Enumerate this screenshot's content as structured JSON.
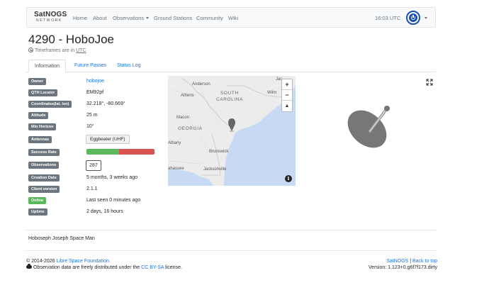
{
  "navbar": {
    "brand_top": "SatNOGS",
    "brand_bottom": "NETWORK",
    "links": [
      "Home",
      "About",
      "Observations",
      "Ground Stations",
      "Community",
      "Wiki"
    ],
    "time": "16:03 UTC"
  },
  "station": {
    "title": "4290 - HoboJoe",
    "timeframe_prefix": "Timeframes are in",
    "timeframe_unit": "UTC"
  },
  "tabs": [
    "Information",
    "Future Passes",
    "Status Log"
  ],
  "info": {
    "owner_label": "Owner",
    "owner": "hobojoe",
    "qth_label": "QTH Locator",
    "qth": "EM92pf",
    "coords_label": "Coordinates(lat, lon)",
    "coords": "32.218°, -80.669°",
    "altitude_label": "Altitude",
    "altitude": "25 m",
    "horizon_label": "Min Horizon",
    "horizon": "10°",
    "antennas_label": "Antennas",
    "antenna": "Eggbeater (UHF)",
    "success_label": "Success Rate",
    "success_ok_fraction": 0.48,
    "success_bad_fraction": 0.52,
    "observations_label": "Observations",
    "observations": "287",
    "creation_label": "Creation Date",
    "creation": "5 months, 3 weeks ago",
    "client_label": "Client version",
    "client": "2.1.1",
    "online_label": "Online",
    "online": "Last seen 0 minutes ago",
    "uptime_label": "Uptime",
    "uptime": "2 days, 16 hours"
  },
  "map": {
    "labels": {
      "anderson": "Anderson",
      "athens": "Athens",
      "sc1": "SOUTH",
      "sc2": "CAROLINA",
      "wilm": "Wilm",
      "jack": "Jac",
      "macon": "Macon",
      "georgia": "GEORGIA",
      "albany": "Albany",
      "brunswick": "Brunswick",
      "tallahassee": "ahassee",
      "jacksonville": "Jacksonville"
    },
    "zoom_in": "+",
    "zoom_out": "−",
    "reset": "▲",
    "info": "i",
    "colors": {
      "land": "#ececec",
      "water": "#c8daf3",
      "marker": "#666666"
    }
  },
  "description": "Hoboseph Joseph Space Man",
  "footer": {
    "copyright": "© 2014-2026",
    "foundation": "Libre Space Foundation.",
    "license_prefix": "Observation data are freely distributed under the",
    "license_link": "CC BY-SA",
    "license_suffix": "license.",
    "satnogs_link": "SatNOGS",
    "separator": "|",
    "back_to_top": "Back to top",
    "version": "Version: 1.123+0.g6f7f173.dirty"
  },
  "icons": [
    "clock-icon",
    "power-icon",
    "expand-icon",
    "antenna-dish-icon",
    "map-marker-icon",
    "cloud-icon",
    "info-icon"
  ]
}
